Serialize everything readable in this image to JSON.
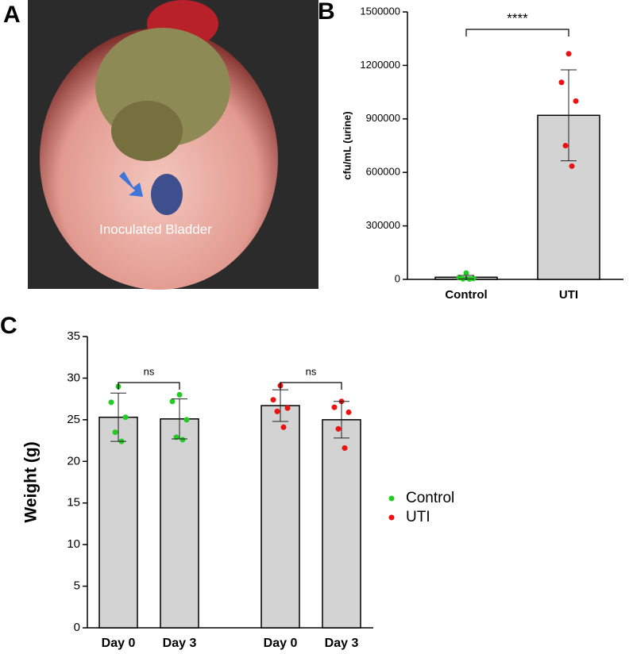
{
  "photo": {
    "panel": "A",
    "label": "Inoculated Bladder"
  },
  "chart_data": [
    {
      "type": "bar",
      "panel": "B",
      "ylabel": "cfu/mL (urine)",
      "categories": [
        "Control",
        "UTI"
      ],
      "values": [
        12000,
        920000
      ],
      "errors": [
        10000,
        255000
      ],
      "points": [
        [
          35000,
          10000,
          5000,
          3000,
          2000
        ],
        [
          1265000,
          1105000,
          1000000,
          750000,
          635000
        ]
      ],
      "point_colors": [
        "#22cc22",
        "#ee1111"
      ],
      "bar_color": "#d3d3d3",
      "significance": "****",
      "ylim": [
        0,
        1500000
      ],
      "yticks": [
        0,
        300000,
        600000,
        900000,
        1200000,
        1500000
      ]
    },
    {
      "type": "bar",
      "panel": "C",
      "ylabel": "Weight (g)",
      "categories": [
        "Day 0",
        "Day 3"
      ],
      "bar_color": "#d3d3d3",
      "series": [
        {
          "name": "Control",
          "color": "#22cc22",
          "values": [
            25.3,
            25.1
          ],
          "errors": [
            2.9,
            2.4
          ],
          "points": [
            [
              29.0,
              27.1,
              25.3,
              23.5,
              22.4
            ],
            [
              28.0,
              27.2,
              25.0,
              22.9,
              22.6
            ]
          ]
        },
        {
          "name": "UTI",
          "color": "#ee1111",
          "values": [
            26.7,
            25.0
          ],
          "errors": [
            1.9,
            2.2
          ],
          "points": [
            [
              29.1,
              27.4,
              26.4,
              26.0,
              24.1
            ],
            [
              27.2,
              26.5,
              25.9,
              23.9,
              21.6
            ]
          ]
        }
      ],
      "significance": [
        "ns",
        "ns"
      ],
      "ylim": [
        0,
        35
      ],
      "yticks": [
        0,
        5,
        10,
        15,
        20,
        25,
        30,
        35
      ]
    }
  ]
}
